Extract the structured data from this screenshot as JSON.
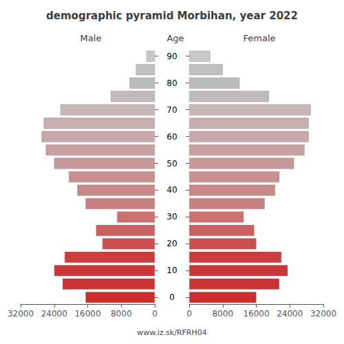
{
  "chart_data": {
    "type": "bar",
    "orientation": "horizontal",
    "title": "demographic pyramid Morbihan, year 2022",
    "ylabel": "Age",
    "annotations": [
      "www.iz.sk/RFRH04"
    ],
    "categories": [
      0,
      null,
      10,
      null,
      20,
      null,
      30,
      null,
      40,
      null,
      50,
      null,
      60,
      null,
      70,
      null,
      80,
      null,
      90
    ],
    "series": [
      {
        "name": "Male",
        "values": [
          16500,
          22000,
          24000,
          21500,
          12500,
          14000,
          9000,
          16500,
          18500,
          20500,
          24000,
          26000,
          27000,
          26500,
          22500,
          10500,
          6000,
          4500,
          2000
        ]
      },
      {
        "name": "Female",
        "values": [
          16000,
          21500,
          23500,
          22000,
          16000,
          15500,
          13000,
          18000,
          20500,
          21500,
          25000,
          27500,
          28500,
          28500,
          29000,
          19000,
          12000,
          8000,
          5000
        ]
      }
    ],
    "colors": [
      "#cc2e2e",
      "#cc3232",
      "#cc3636",
      "#cc3c3c",
      "#cc5050",
      "#cc6060",
      "#cc7070",
      "#c98080",
      "#c98888",
      "#c99090",
      "#c89898",
      "#c8a0a0",
      "#c8a8a8",
      "#c8afaf",
      "#c8b5b5",
      "#c0baba",
      "#b8bcbc",
      "#c0c0c0",
      "#c8c8c8"
    ],
    "xlim": [
      0,
      32000
    ],
    "xticks": [
      0,
      8000,
      16000,
      24000,
      32000
    ],
    "grid": false
  }
}
